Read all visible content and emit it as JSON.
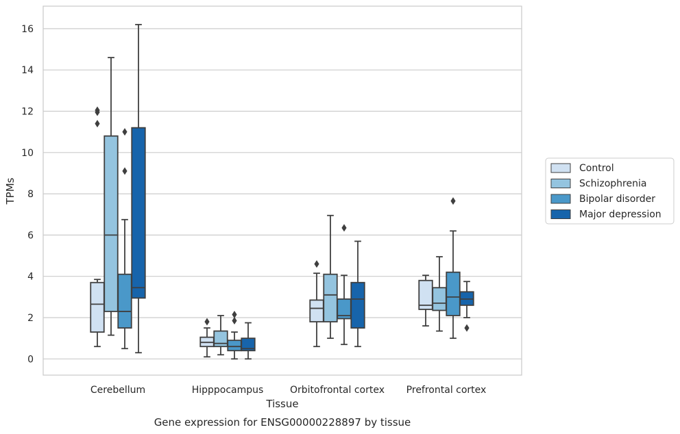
{
  "chart_data": {
    "type": "box",
    "caption": "Gene expression for ENSG00000228897 by tissue",
    "xlabel": "Tissue",
    "ylabel": "TPMs",
    "ylim": [
      -0.8,
      17
    ],
    "yticks": [
      0,
      2,
      4,
      6,
      8,
      10,
      12,
      14,
      16
    ],
    "grid": "horizontal",
    "legend_position": "right",
    "categories": [
      "Cerebellum",
      "Hipppocampus",
      "Orbitofrontal cortex",
      "Prefrontal cortex"
    ],
    "series": [
      {
        "name": "Control",
        "color": "#d0e1f2",
        "boxes": [
          {
            "whislo": 0.6,
            "q1": 1.3,
            "med": 2.65,
            "q3": 3.7,
            "whishi": 3.85,
            "fliers": [
              11.4,
              11.95,
              12.05
            ]
          },
          {
            "whislo": 0.1,
            "q1": 0.6,
            "med": 0.8,
            "q3": 1.05,
            "whishi": 1.5,
            "fliers": [
              1.8
            ]
          },
          {
            "whislo": 0.6,
            "q1": 1.8,
            "med": 2.45,
            "q3": 2.85,
            "whishi": 4.15,
            "fliers": [
              4.6
            ]
          },
          {
            "whislo": 1.6,
            "q1": 2.4,
            "med": 2.6,
            "q3": 3.8,
            "whishi": 4.05,
            "fliers": []
          }
        ]
      },
      {
        "name": "Schizophrenia",
        "color": "#94c4df",
        "boxes": [
          {
            "whislo": 1.15,
            "q1": 2.3,
            "med": 6.0,
            "q3": 10.8,
            "whishi": 14.6,
            "fliers": []
          },
          {
            "whislo": 0.2,
            "q1": 0.6,
            "med": 0.75,
            "q3": 1.35,
            "whishi": 2.1,
            "fliers": []
          },
          {
            "whislo": 1.0,
            "q1": 1.8,
            "med": 3.1,
            "q3": 4.1,
            "whishi": 6.95,
            "fliers": []
          },
          {
            "whislo": 1.35,
            "q1": 2.35,
            "med": 2.7,
            "q3": 3.45,
            "whishi": 4.95,
            "fliers": []
          }
        ]
      },
      {
        "name": "Bipolar disorder",
        "color": "#4a98c9",
        "boxes": [
          {
            "whislo": 0.5,
            "q1": 1.5,
            "med": 2.3,
            "q3": 4.1,
            "whishi": 6.75,
            "fliers": [
              9.1,
              11.0
            ]
          },
          {
            "whislo": 0.0,
            "q1": 0.4,
            "med": 0.6,
            "q3": 0.9,
            "whishi": 1.3,
            "fliers": [
              1.85,
              2.15
            ]
          },
          {
            "whislo": 0.7,
            "q1": 1.95,
            "med": 2.1,
            "q3": 2.9,
            "whishi": 4.05,
            "fliers": [
              6.35
            ]
          },
          {
            "whislo": 1.0,
            "q1": 2.1,
            "med": 3.0,
            "q3": 4.2,
            "whishi": 6.2,
            "fliers": [
              7.65
            ]
          }
        ]
      },
      {
        "name": "Major depression",
        "color": "#1764ab",
        "boxes": [
          {
            "whislo": 0.3,
            "q1": 2.95,
            "med": 3.45,
            "q3": 11.2,
            "whishi": 16.2,
            "fliers": []
          },
          {
            "whislo": 0.0,
            "q1": 0.4,
            "med": 0.5,
            "q3": 1.0,
            "whishi": 1.75,
            "fliers": []
          },
          {
            "whislo": 0.6,
            "q1": 1.5,
            "med": 2.9,
            "q3": 3.7,
            "whishi": 5.7,
            "fliers": []
          },
          {
            "whislo": 2.0,
            "q1": 2.6,
            "med": 2.9,
            "q3": 3.25,
            "whishi": 3.75,
            "fliers": [
              1.5
            ]
          }
        ]
      }
    ]
  }
}
